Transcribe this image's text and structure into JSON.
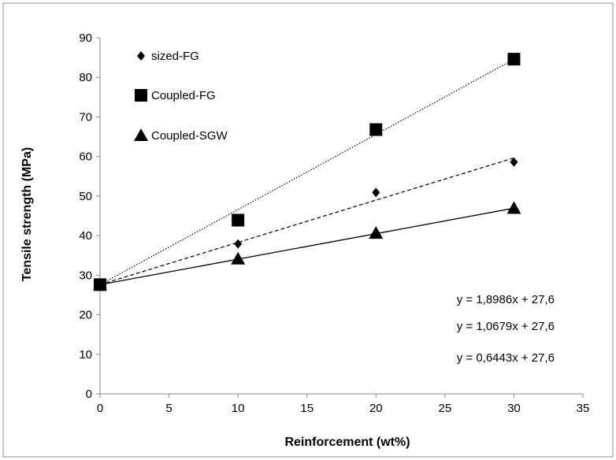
{
  "chart_data": {
    "type": "scatter",
    "title": "",
    "xlabel": "Reinforcement (wt%)",
    "ylabel": "Tensile strength (MPa)",
    "xlim": [
      0,
      35
    ],
    "ylim": [
      0,
      90
    ],
    "xticks": [
      0,
      5,
      10,
      15,
      20,
      25,
      30,
      35
    ],
    "yticks": [
      0,
      10,
      20,
      30,
      40,
      50,
      60,
      70,
      80,
      90
    ],
    "grid": false,
    "legend_position": "top-left",
    "series": [
      {
        "name": "sized-FG",
        "marker": "diamond",
        "x": [
          0,
          10,
          20,
          30
        ],
        "y": [
          27.6,
          37.9,
          50.9,
          58.6
        ],
        "trendline": {
          "slope": 1.0679,
          "intercept": 27.6,
          "style": "dashed"
        }
      },
      {
        "name": "Coupled-FG",
        "marker": "square",
        "x": [
          0,
          10,
          20,
          30
        ],
        "y": [
          27.6,
          43.9,
          66.8,
          84.6
        ],
        "trendline": {
          "slope": 1.8986,
          "intercept": 27.6,
          "style": "dotted"
        }
      },
      {
        "name": "Coupled-SGW",
        "marker": "triangle",
        "x": [
          0,
          10,
          20,
          30
        ],
        "y": [
          27.6,
          34.1,
          40.6,
          46.9
        ],
        "trendline": {
          "slope": 0.6443,
          "intercept": 27.6,
          "style": "solid"
        }
      }
    ],
    "annotations": [
      "y = 1,8986x + 27,6",
      "y = 1,0679x + 27,6",
      "y = 0,6443x + 27,6"
    ],
    "colors": {
      "marker": "#000000",
      "frame": "#8c8c8c",
      "axis": "#888888"
    }
  }
}
